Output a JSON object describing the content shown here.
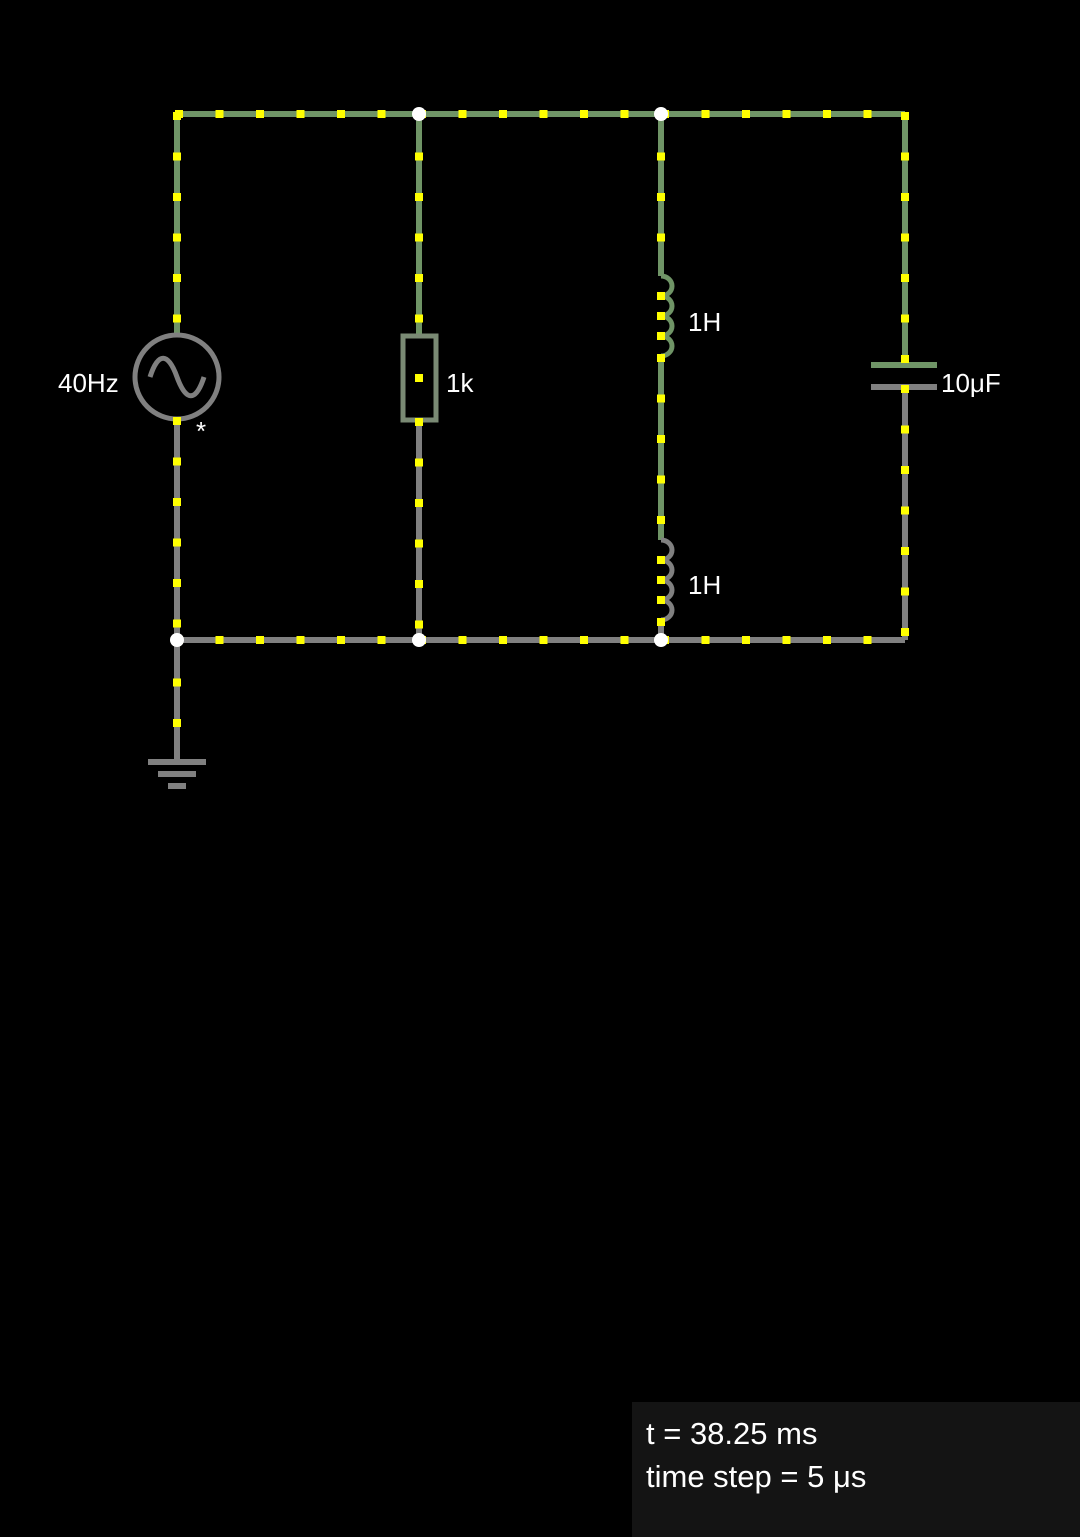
{
  "circuit": {
    "source": {
      "label": "40Hz",
      "marker": "*",
      "icon": "ac-source-icon"
    },
    "resistor": {
      "label": "1k"
    },
    "inductor_top": {
      "label": "1H"
    },
    "inductor_bottom": {
      "label": "1H"
    },
    "capacitor": {
      "label": "10μF"
    },
    "ground": {
      "icon": "ground-icon"
    }
  },
  "colors": {
    "background": "#000000",
    "wire_positive": "#6f9466",
    "wire_neutral": "#808080",
    "current_dot": "#ffff00",
    "node": "#ffffff"
  },
  "status": {
    "time": "t = 38.25 ms",
    "time_step": "time step = 5 μs"
  }
}
